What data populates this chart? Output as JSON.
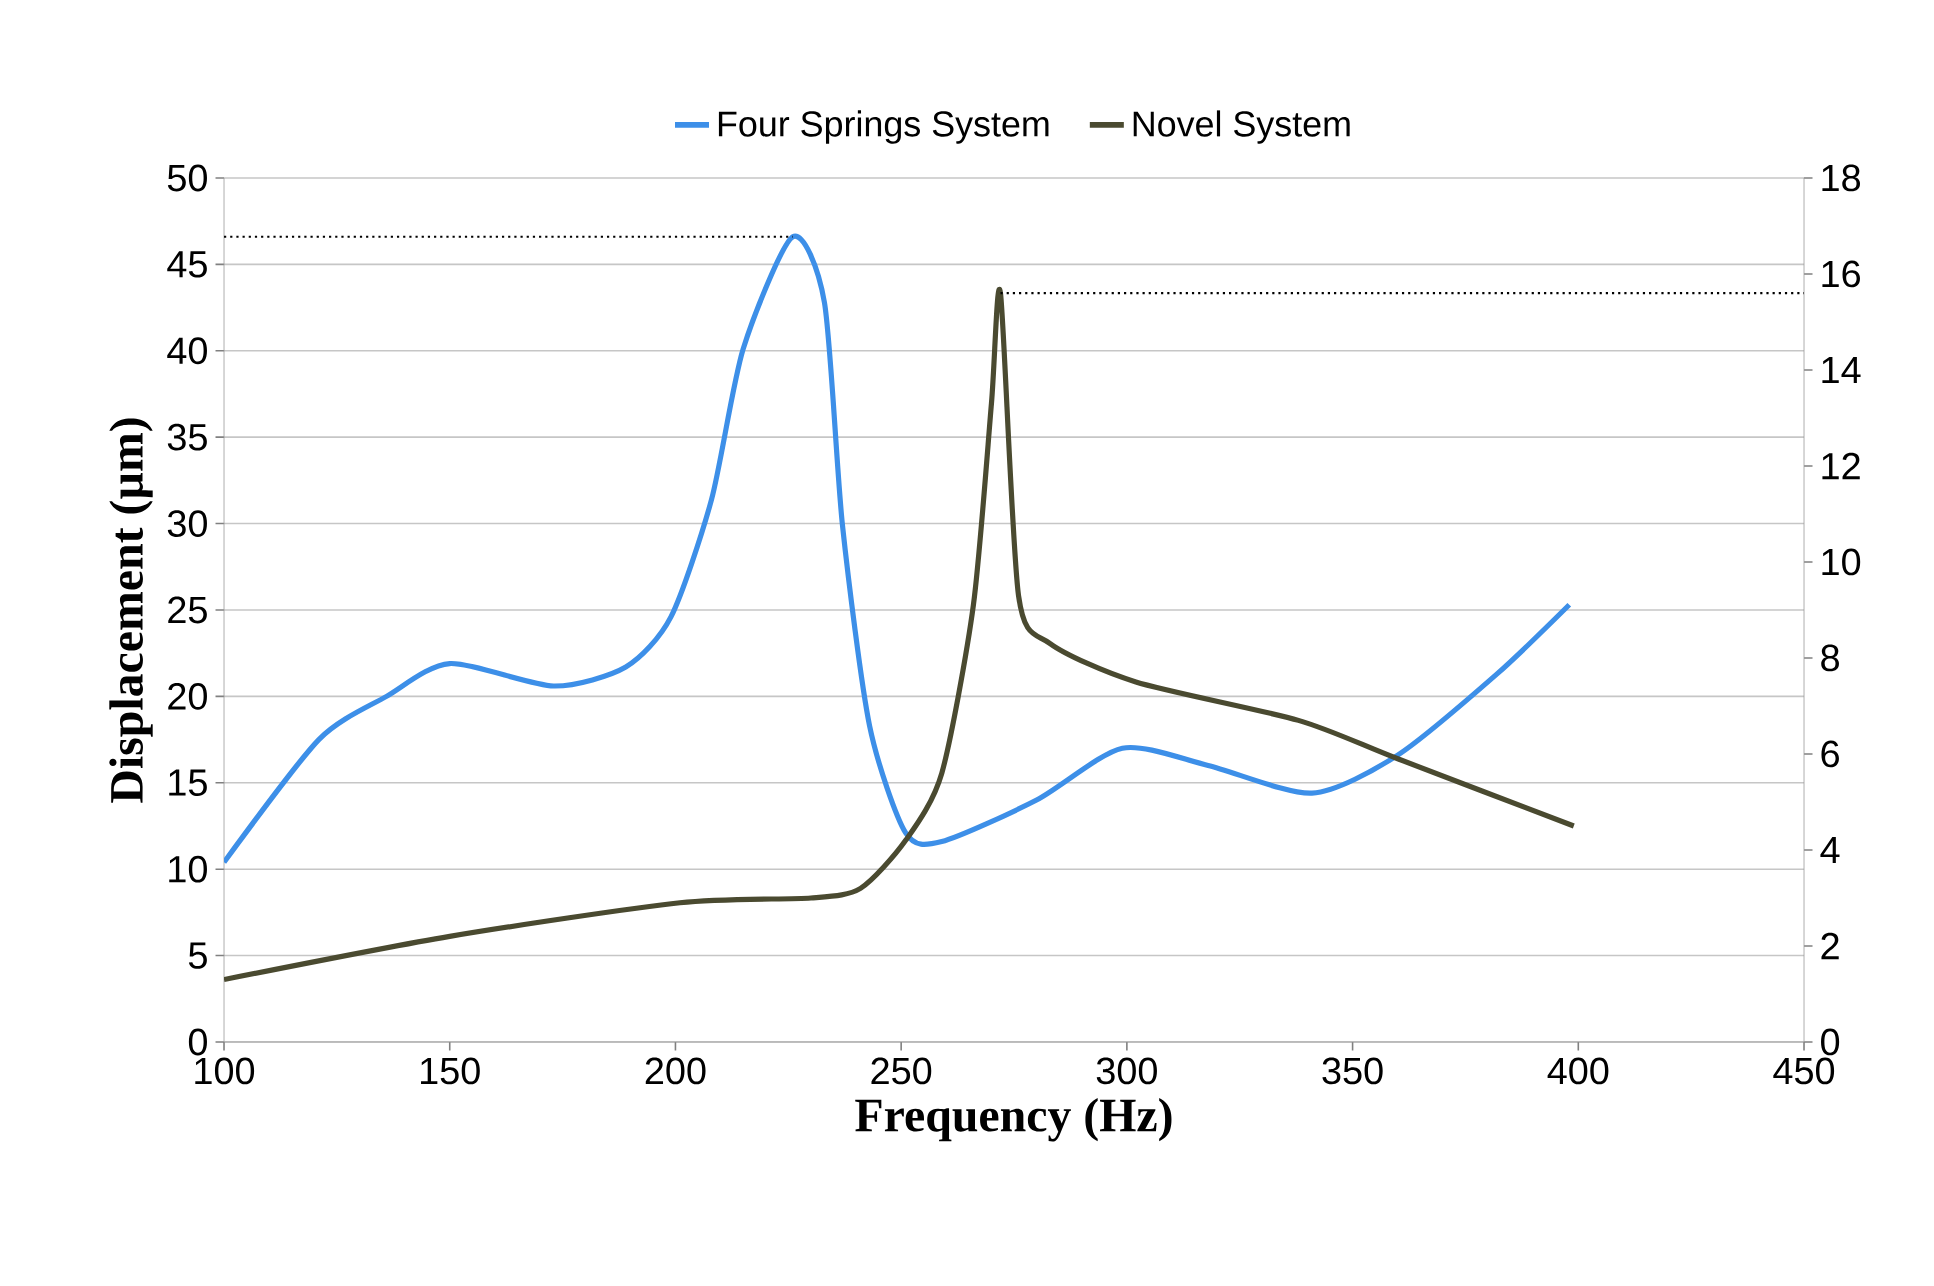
{
  "chart_data": {
    "type": "line",
    "xlabel": "Frequency (Hz)",
    "ylabel": "Displacement (µm)",
    "xlim": [
      100,
      450
    ],
    "xticks": [
      100,
      150,
      200,
      250,
      300,
      350,
      400,
      450
    ],
    "ylim": [
      0,
      50
    ],
    "yticks": [
      0,
      5,
      10,
      15,
      20,
      25,
      30,
      35,
      40,
      45,
      50
    ],
    "y2lim": [
      0,
      18
    ],
    "y2ticks": [
      0,
      2,
      4,
      6,
      8,
      10,
      12,
      14,
      16,
      18
    ],
    "grid": "y",
    "legend": "top",
    "marker": "none",
    "line_style": "solid",
    "series": [
      {
        "name": "Four Springs System",
        "color": "#3d8fe8",
        "x": [
          100,
          121,
          136,
          150,
          173,
          189,
          199,
          208,
          215,
          226,
          233,
          237,
          243,
          251,
          259,
          280,
          299,
          318,
          341,
          360,
          382,
          398
        ],
        "values": [
          10.4,
          17.5,
          20.0,
          21.9,
          20.6,
          21.7,
          24.6,
          31.4,
          40.1,
          46.6,
          42.8,
          29.9,
          18.3,
          12.1,
          11.6,
          14.0,
          17.0,
          16.0,
          14.4,
          16.6,
          21.3,
          25.3
        ]
      },
      {
        "name": "Novel System",
        "color": "#4a4a30",
        "axis": "y2",
        "x": [
          100,
          150,
          201,
          230,
          241,
          251,
          259,
          266,
          270,
          272,
          276,
          283,
          302,
          338,
          360,
          399
        ],
        "values": [
          1.3,
          2.2,
          2.9,
          3.0,
          3.2,
          4.2,
          5.6,
          9.1,
          13.3,
          15.6,
          9.3,
          8.3,
          7.5,
          6.7,
          5.9,
          4.5
        ]
      }
    ],
    "ref_lines": [
      {
        "axis": "y",
        "value": 46.6,
        "line_style": "dotted",
        "color": "#000000"
      },
      {
        "axis": "y2",
        "value": 15.6,
        "line_style": "dotted",
        "color": "#000000"
      }
    ]
  }
}
